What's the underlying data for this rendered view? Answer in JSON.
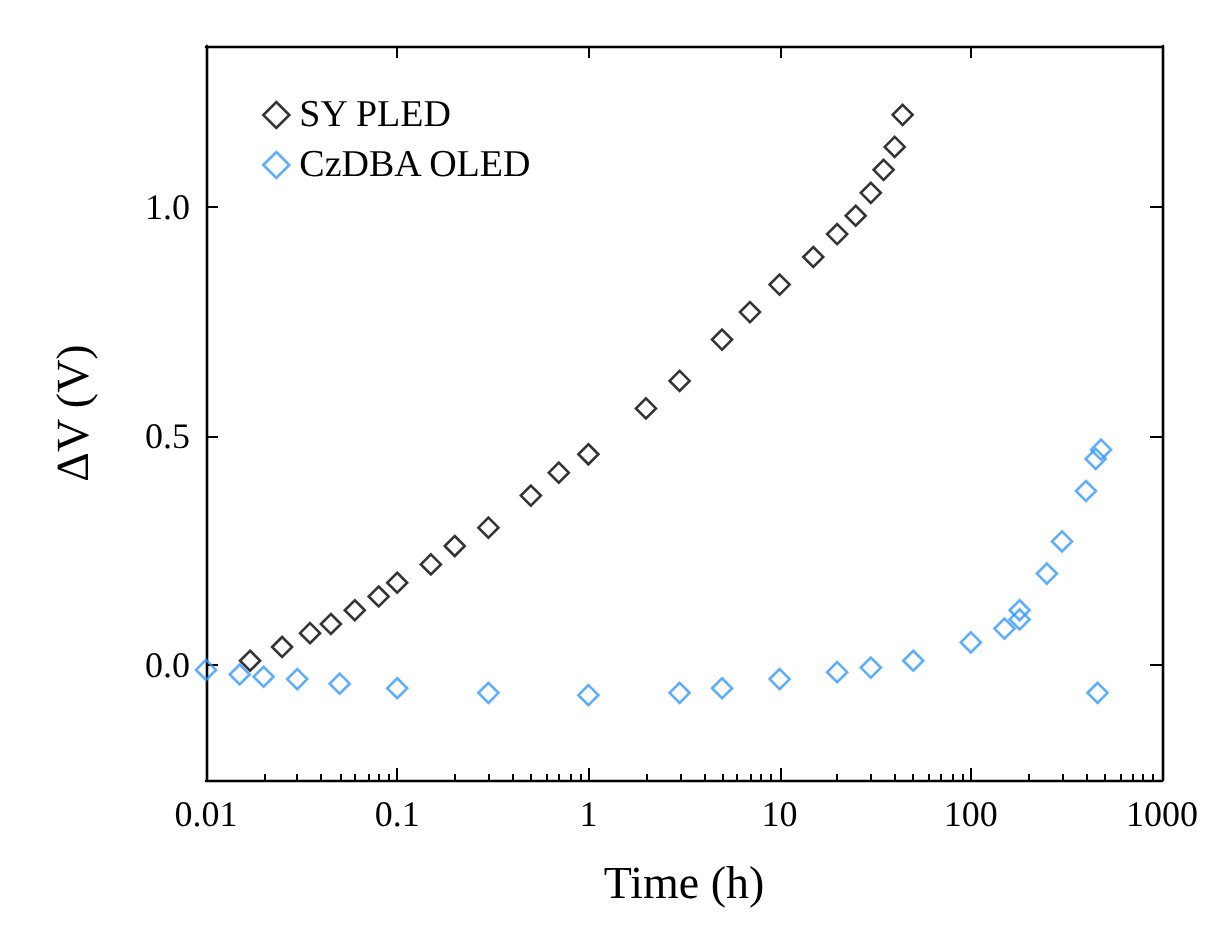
{
  "chart_data": {
    "type": "scatter",
    "xlabel": "Time (h)",
    "ylabel": "ΔV (V)",
    "log": "x",
    "xlim": [
      0.01,
      1000
    ],
    "xticks": [
      0.01,
      0.1,
      1,
      10,
      100,
      1000
    ],
    "ylim": [
      -0.25,
      1.35
    ],
    "yticks": [
      {
        "value": 0,
        "label": "0.0"
      },
      {
        "value": 0.5,
        "label": "0.5"
      },
      {
        "value": 1,
        "label": "1.0"
      }
    ],
    "grid": false,
    "legend": "top left",
    "marker": "diamond",
    "series": [
      {
        "name": "SY PLED",
        "color": "#000000",
        "x": [
          0.017,
          0.025,
          0.035,
          0.045,
          0.06,
          0.08,
          0.1,
          0.15,
          0.2,
          0.3,
          0.5,
          0.7,
          1,
          2,
          3,
          5,
          7,
          10,
          15,
          20,
          25,
          30,
          35,
          40,
          44
        ],
        "values": [
          0.01,
          0.04,
          0.07,
          0.09,
          0.12,
          0.15,
          0.18,
          0.22,
          0.26,
          0.3,
          0.37,
          0.42,
          0.46,
          0.56,
          0.62,
          0.71,
          0.77,
          0.83,
          0.89,
          0.94,
          0.98,
          1.03,
          1.08,
          1.13,
          1.2
        ]
      },
      {
        "name": "CzDBA OLED",
        "color": "#3399ff",
        "x": [
          0.01,
          0.015,
          0.02,
          0.03,
          0.05,
          0.1,
          0.3,
          1,
          3,
          5,
          10,
          20,
          30,
          50,
          100,
          150,
          180,
          180,
          250,
          300,
          400,
          450,
          480,
          460
        ],
        "values": [
          -0.01,
          -0.02,
          -0.025,
          -0.03,
          -0.04,
          -0.05,
          -0.06,
          -0.065,
          -0.06,
          -0.05,
          -0.03,
          -0.015,
          -0.005,
          0.01,
          0.05,
          0.08,
          0.1,
          0.12,
          0.2,
          0.27,
          0.38,
          0.45,
          0.47,
          -0.06
        ]
      }
    ]
  }
}
